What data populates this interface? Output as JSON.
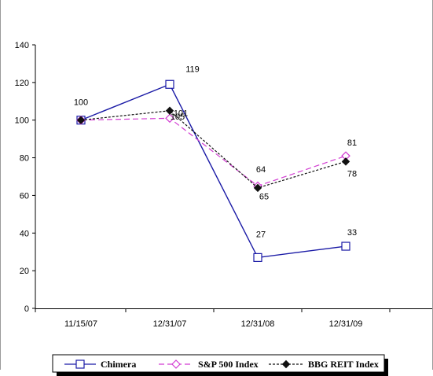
{
  "chart_data": {
    "type": "line",
    "categories": [
      "11/15/07",
      "12/31/07",
      "12/31/08",
      "12/31/09"
    ],
    "ylim": [
      0,
      140
    ],
    "yticks": [
      0,
      20,
      40,
      60,
      80,
      100,
      120,
      140
    ],
    "grid": false,
    "legend_position": "bottom",
    "series": [
      {
        "name": "Chimera",
        "values": [
          100,
          119,
          27,
          33
        ],
        "color": "#1a1aa6",
        "marker": "square-open",
        "line": "solid",
        "labels": [
          "100",
          "119",
          "27",
          "33"
        ]
      },
      {
        "name": "S&P 500 Index",
        "values": [
          100,
          101,
          65,
          81
        ],
        "color": "#d23cd2",
        "marker": "diamond-open",
        "line": "dashed",
        "labels": [
          "",
          "101",
          "65",
          "81"
        ]
      },
      {
        "name": "BBG REIT Index",
        "values": [
          100,
          105,
          64,
          78
        ],
        "color": "#111111",
        "marker": "diamond-filled",
        "line": "dotted",
        "labels": [
          "",
          "105",
          "64",
          "78"
        ]
      }
    ]
  }
}
